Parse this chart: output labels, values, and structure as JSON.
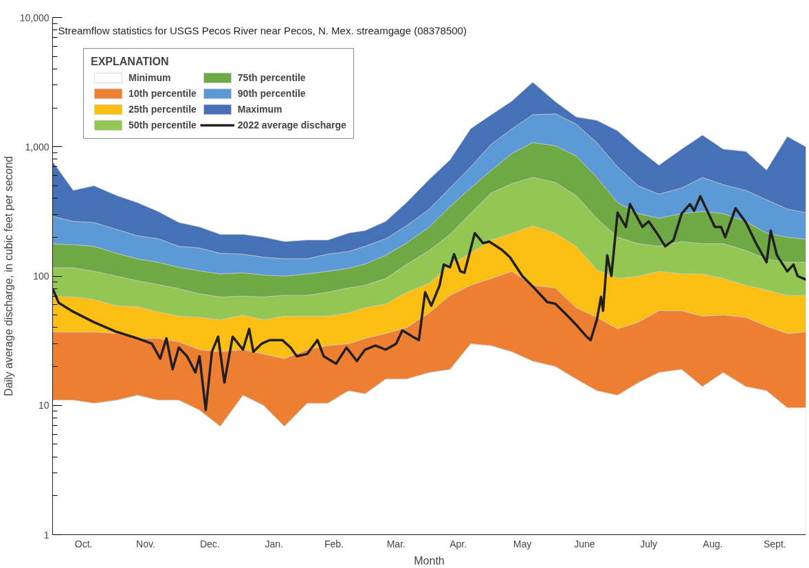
{
  "chart_data": {
    "type": "area",
    "title": "Streamflow statistics for USGS Pecos River near Pecos, N. Mex. streamgage (08378500)",
    "xlabel": "Month",
    "ylabel": "Daily average discharge, in cubic feet per second",
    "legend_title": "EXPLANATION",
    "log": true,
    "legend": "top left",
    "ylim": [
      1,
      10000
    ],
    "yticks": [
      1,
      10,
      100,
      {
        "value": 1000,
        "label": "1,000"
      },
      {
        "value": 10000,
        "label": "10,000"
      }
    ],
    "xlim": [
      "2021-10-01",
      "2022-09-30"
    ],
    "xticks": [
      {
        "value": "2021-10-16",
        "label": "Oct."
      },
      {
        "value": "2021-11-15",
        "label": "Nov."
      },
      {
        "value": "2021-12-16",
        "label": "Dec."
      },
      {
        "value": "2022-01-16",
        "label": "Jan."
      },
      {
        "value": "2022-02-14",
        "label": "Feb."
      },
      {
        "value": "2022-03-16",
        "label": "Mar."
      },
      {
        "value": "2022-04-15",
        "label": "Apr."
      },
      {
        "value": "2022-05-16",
        "label": "May"
      },
      {
        "value": "2022-06-15",
        "label": "June"
      },
      {
        "value": "2022-07-16",
        "label": "July"
      },
      {
        "value": "2022-08-16",
        "label": "Aug."
      },
      {
        "value": "2022-09-15",
        "label": "Sept."
      }
    ],
    "x": [
      "2021-10-01",
      "2021-10-11",
      "2021-10-21",
      "2021-11-01",
      "2021-11-11",
      "2021-11-21",
      "2021-12-01",
      "2021-12-11",
      "2021-12-21",
      "2022-01-01",
      "2022-01-11",
      "2022-01-21",
      "2022-02-01",
      "2022-02-11",
      "2022-02-21",
      "2022-03-01",
      "2022-03-11",
      "2022-03-21",
      "2022-04-01",
      "2022-04-11",
      "2022-04-21",
      "2022-05-01",
      "2022-05-11",
      "2022-05-21",
      "2022-06-01",
      "2022-06-11",
      "2022-06-21",
      "2022-07-01",
      "2022-07-11",
      "2022-07-21",
      "2022-08-01",
      "2022-08-11",
      "2022-08-21",
      "2022-09-01",
      "2022-09-11",
      "2022-09-21",
      "2022-09-30"
    ],
    "series": [
      {
        "name": "Minimum",
        "color": "#ffffff",
        "values": [
          11,
          11,
          10.4,
          11,
          12,
          11,
          11,
          9.2,
          6.9,
          12,
          10,
          6.9,
          10.4,
          10.4,
          13,
          12.3,
          16,
          16,
          18,
          19,
          30,
          29,
          26,
          22,
          20,
          16,
          13,
          12,
          15,
          18,
          19,
          14,
          18,
          14,
          13,
          9.6,
          9.6
        ]
      },
      {
        "name": "10th percentile",
        "color": "#ed7f32",
        "values": [
          37,
          37,
          37,
          36,
          33,
          33,
          31,
          27,
          26,
          27,
          25,
          23,
          27,
          29,
          30,
          33,
          36,
          40,
          52,
          71,
          85,
          96,
          109,
          85,
          81,
          57,
          48,
          39,
          44,
          54,
          54,
          49,
          50,
          48,
          41,
          36,
          37
        ]
      },
      {
        "name": "25th percentile",
        "color": "#fbbf13",
        "values": [
          70,
          69,
          66,
          59,
          58,
          53,
          49,
          48,
          46,
          50,
          46,
          49,
          49,
          49,
          52,
          57,
          61,
          75,
          88,
          123,
          150,
          190,
          215,
          245,
          215,
          170,
          112,
          96,
          100,
          109,
          104,
          104,
          96,
          85,
          78,
          71,
          71
        ]
      },
      {
        "name": "50th percentile",
        "color": "#92c754",
        "values": [
          116,
          116,
          109,
          100,
          92,
          86,
          80,
          73,
          69,
          70,
          69,
          71,
          71,
          75,
          81,
          85,
          96,
          123,
          158,
          210,
          305,
          440,
          520,
          580,
          530,
          420,
          280,
          200,
          178,
          170,
          185,
          178,
          178,
          158,
          135,
          128,
          128
        ]
      },
      {
        "name": "75th percentile",
        "color": "#6fa946",
        "values": [
          178,
          175,
          170,
          150,
          136,
          128,
          117,
          110,
          104,
          106,
          102,
          100,
          104,
          109,
          115,
          124,
          145,
          180,
          240,
          345,
          480,
          660,
          890,
          1080,
          1020,
          850,
          580,
          370,
          305,
          280,
          305,
          316,
          305,
          265,
          215,
          200,
          193
        ]
      },
      {
        "name": "90th percentile",
        "color": "#5b9ad4",
        "values": [
          290,
          265,
          260,
          230,
          205,
          195,
          170,
          165,
          150,
          148,
          140,
          136,
          136,
          148,
          155,
          170,
          195,
          245,
          330,
          480,
          700,
          1050,
          1380,
          1770,
          1800,
          1500,
          1080,
          700,
          500,
          430,
          480,
          580,
          510,
          460,
          390,
          330,
          310
        ]
      },
      {
        "name": "Maximum",
        "color": "#4671b8",
        "values": [
          770,
          460,
          500,
          420,
          370,
          316,
          260,
          240,
          210,
          210,
          200,
          185,
          190,
          190,
          215,
          225,
          265,
          370,
          560,
          790,
          1380,
          1770,
          2260,
          3160,
          2230,
          1700,
          1600,
          1330,
          960,
          720,
          960,
          1230,
          960,
          920,
          660,
          1200,
          1000
        ]
      },
      {
        "name": "2022 average discharge",
        "type": "line",
        "color": "#231f20",
        "x": [
          "2021-10-01",
          "2021-10-04",
          "2021-10-11",
          "2021-10-21",
          "2021-11-01",
          "2021-11-11",
          "2021-11-18",
          "2021-11-22",
          "2021-11-25",
          "2021-11-28",
          "2021-12-01",
          "2021-12-05",
          "2021-12-09",
          "2021-12-11",
          "2021-12-14",
          "2021-12-17",
          "2021-12-20",
          "2021-12-23",
          "2021-12-27",
          "2022-01-01",
          "2022-01-04",
          "2022-01-06",
          "2022-01-10",
          "2022-01-14",
          "2022-01-20",
          "2022-01-24",
          "2022-01-27",
          "2022-02-01",
          "2022-02-06",
          "2022-02-09",
          "2022-02-15",
          "2022-02-20",
          "2022-02-25",
          "2022-03-01",
          "2022-03-06",
          "2022-03-11",
          "2022-03-16",
          "2022-03-19",
          "2022-03-24",
          "2022-03-27",
          "2022-03-30",
          "2022-04-02",
          "2022-04-06",
          "2022-04-08",
          "2022-04-11",
          "2022-04-13",
          "2022-04-16",
          "2022-04-18",
          "2022-04-23",
          "2022-04-27",
          "2022-04-30",
          "2022-05-06",
          "2022-05-10",
          "2022-05-16",
          "2022-05-22",
          "2022-05-28",
          "2022-06-01",
          "2022-06-07",
          "2022-06-11",
          "2022-06-16",
          "2022-06-18",
          "2022-06-21",
          "2022-06-23",
          "2022-06-24",
          "2022-06-26",
          "2022-06-28",
          "2022-07-01",
          "2022-07-05",
          "2022-07-07",
          "2022-07-13",
          "2022-07-16",
          "2022-07-20",
          "2022-07-24",
          "2022-07-28",
          "2022-08-01",
          "2022-08-05",
          "2022-08-07",
          "2022-08-10",
          "2022-08-17",
          "2022-08-20",
          "2022-08-22",
          "2022-08-27",
          "2022-09-01",
          "2022-09-06",
          "2022-09-11",
          "2022-09-13",
          "2022-09-16",
          "2022-09-21",
          "2022-09-24",
          "2022-09-26",
          "2022-09-30"
        ],
        "values": [
          80,
          62,
          53,
          44,
          37,
          33,
          30,
          23,
          33,
          19,
          28,
          24,
          18,
          24,
          9.2,
          26,
          34,
          15,
          34,
          27,
          39,
          26,
          30,
          32,
          32,
          28,
          24,
          25,
          32,
          24,
          21,
          28,
          22,
          27,
          29,
          27,
          30,
          38,
          34,
          32,
          75,
          59,
          85,
          123,
          117,
          148,
          109,
          106,
          215,
          180,
          185,
          160,
          140,
          100,
          80,
          63,
          61,
          49,
          42,
          34,
          32,
          46,
          69,
          54,
          145,
          100,
          310,
          240,
          360,
          240,
          265,
          215,
          170,
          190,
          305,
          360,
          320,
          415,
          240,
          240,
          200,
          335,
          260,
          178,
          128,
          225,
          145,
          109,
          123,
          100,
          94
        ]
      }
    ]
  }
}
